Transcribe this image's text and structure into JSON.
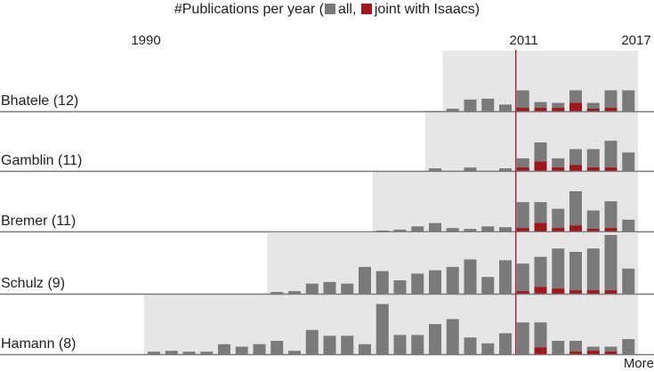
{
  "header": {
    "prefix": "#Publications per year (",
    "all_label": "all,",
    "joint_label": "joint with Isaacs)",
    "all_color": "#7a7a7a",
    "joint_color": "#a0161f"
  },
  "more_label": "More",
  "chart_data": {
    "type": "bar",
    "stacked": "overlay",
    "x_start": 1990,
    "x_end": 2017,
    "marked_years": [
      "1990",
      "2011",
      "2017"
    ],
    "highlight_year": 2011,
    "highlight_color": "#a0161f",
    "ylim": [
      0,
      6
    ],
    "colors": {
      "all": "#7a7a7a",
      "joint": "#a0161f",
      "shade": "#e6e6e6",
      "baseline": "#7a7a7a"
    },
    "rows": [
      {
        "name": "Bhatele (12)",
        "active_from": 2007,
        "all": {
          "2007": 0.3,
          "2008": 1.4,
          "2009": 1.5,
          "2010": 0.8,
          "2011": 2.5,
          "2012": 1.1,
          "2013": 1.0,
          "2014": 2.5,
          "2015": 1.0,
          "2016": 2.5,
          "2017": 2.5
        },
        "joint": {
          "2011": 0.4,
          "2012": 0.4,
          "2013": 0.4,
          "2014": 1.0,
          "2015": 0.3,
          "2016": 0.4
        }
      },
      {
        "name": "Gamblin (11)",
        "active_from": 2006,
        "all": {
          "2006": 0.3,
          "2008": 0.4,
          "2010": 0.3,
          "2011": 1.5,
          "2012": 3.4,
          "2013": 1.5,
          "2014": 2.6,
          "2015": 2.6,
          "2016": 3.6,
          "2017": 2.2
        },
        "joint": {
          "2011": 0.4,
          "2012": 1.1,
          "2013": 0.4,
          "2014": 0.7,
          "2015": 0.4,
          "2016": 0.4
        }
      },
      {
        "name": "Bremer (11)",
        "active_from": 2003,
        "all": {
          "2003": 0.1,
          "2004": 0.2,
          "2005": 0.6,
          "2006": 1.0,
          "2007": 0.4,
          "2008": 0.3,
          "2009": 0.6,
          "2010": 0.5,
          "2011": 3.5,
          "2012": 3.5,
          "2013": 2.7,
          "2014": 4.8,
          "2015": 2.5,
          "2016": 3.6,
          "2017": 1.4
        },
        "joint": {
          "2011": 0.4,
          "2012": 1.0,
          "2013": 0.4,
          "2014": 0.7,
          "2015": 0.3,
          "2016": 0.4
        }
      },
      {
        "name": "Schulz (9)",
        "active_from": 1997,
        "all": {
          "1997": 0.2,
          "1998": 0.3,
          "1999": 1.2,
          "2000": 1.4,
          "2001": 1.2,
          "2002": 3.2,
          "2003": 2.7,
          "2004": 1.6,
          "2005": 2.4,
          "2006": 2.8,
          "2007": 3.2,
          "2008": 4.1,
          "2009": 2.0,
          "2010": 4.0,
          "2011": 3.6,
          "2012": 4.4,
          "2013": 5.4,
          "2014": 5.0,
          "2015": 5.4,
          "2016": 7.3,
          "2017": 3.0
        },
        "joint": {
          "2011": 0.3,
          "2012": 0.8,
          "2013": 0.6,
          "2014": 0.4,
          "2015": 0.4,
          "2016": 0.4
        }
      },
      {
        "name": "Hamann (8)",
        "active_from": 1990,
        "all": {
          "1990": 0.3,
          "1991": 0.4,
          "1992": 0.3,
          "1993": 0.3,
          "1994": 1.2,
          "1995": 0.9,
          "1996": 1.2,
          "1997": 1.6,
          "1998": 0.4,
          "1999": 2.9,
          "2000": 2.2,
          "2001": 2.2,
          "2002": 1.2,
          "2003": 6.0,
          "2004": 2.3,
          "2005": 2.3,
          "2006": 3.6,
          "2007": 4.2,
          "2008": 2.0,
          "2009": 1.3,
          "2010": 2.5,
          "2011": 3.8,
          "2012": 3.8,
          "2013": 1.6,
          "2014": 1.6,
          "2015": 0.9,
          "2016": 0.9,
          "2017": 1.8
        },
        "joint": {
          "2012": 0.8,
          "2014": 0.3,
          "2015": 0.4,
          "2016": 0.3
        }
      }
    ]
  }
}
